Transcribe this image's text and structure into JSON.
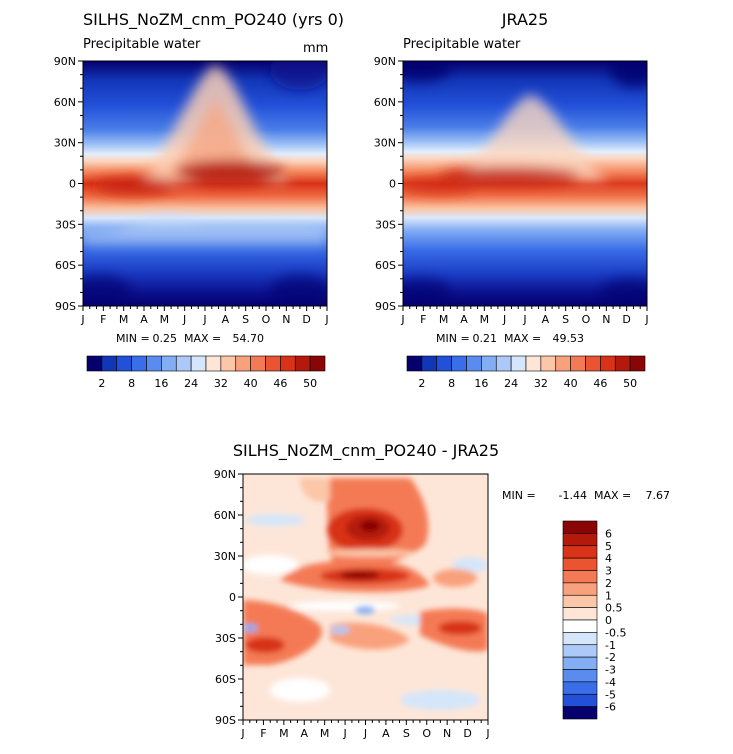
{
  "chart_data": [
    {
      "type": "heatmap",
      "title": "SILHS_NoZM_cnm_PO240 (yrs 0)",
      "subtitle": "Precipitable water",
      "units": "mm",
      "x": [
        "J",
        "F",
        "M",
        "A",
        "M",
        "J",
        "J",
        "A",
        "S",
        "O",
        "N",
        "D",
        "J"
      ],
      "y": [
        "90N",
        "60N",
        "30N",
        "0",
        "30S",
        "60S",
        "90S"
      ],
      "min_label": "MIN =",
      "min": "0.25",
      "max_label": "MAX =",
      "max": "54.70",
      "colorbar_labels": [
        "2",
        "8",
        "16",
        "24",
        "32",
        "40",
        "46",
        "50"
      ],
      "colorbar_colors": [
        "#05006e",
        "#1236b8",
        "#2250d8",
        "#3a6ee8",
        "#5a8cf0",
        "#84aef4",
        "#adc9f7",
        "#d6e6fa",
        "#fde6d8",
        "#fcc6a8",
        "#f9a07c",
        "#f47a55",
        "#ea5430",
        "#d83218",
        "#b41a0c",
        "#8a0606"
      ]
    },
    {
      "type": "heatmap",
      "title": "JRA25",
      "subtitle": "Precipitable water",
      "x": [
        "J",
        "F",
        "M",
        "A",
        "M",
        "J",
        "J",
        "A",
        "S",
        "O",
        "N",
        "D",
        "J"
      ],
      "y": [
        "90N",
        "60N",
        "30N",
        "0",
        "30S",
        "60S",
        "90S"
      ],
      "min_label": "MIN =",
      "min": "0.21",
      "max_label": "MAX =",
      "max": "49.53",
      "colorbar_labels": [
        "2",
        "8",
        "16",
        "24",
        "32",
        "40",
        "46",
        "50"
      ]
    },
    {
      "type": "heatmap",
      "title": "SILHS_NoZM_cnm_PO240 - JRA25",
      "x": [
        "J",
        "F",
        "M",
        "A",
        "M",
        "J",
        "J",
        "A",
        "S",
        "O",
        "N",
        "D",
        "J"
      ],
      "y": [
        "90N",
        "60N",
        "30N",
        "0",
        "30S",
        "60S",
        "90S"
      ],
      "min_label": "MIN =",
      "min": "-1.44",
      "max_label": "MAX =",
      "max": "7.67",
      "colorbar_labels": [
        "6",
        "5",
        "4",
        "3",
        "2",
        "1",
        "0.5",
        "0",
        "-0.5",
        "-1",
        "-2",
        "-3",
        "-4",
        "-5",
        "-6"
      ],
      "colorbar_colors": [
        "#8a0606",
        "#b41a0c",
        "#d83218",
        "#ea5430",
        "#f47a55",
        "#f9a07c",
        "#fcc6a8",
        "#fde6d8",
        "#ffffff",
        "#d6e6fa",
        "#adc9f7",
        "#84aef4",
        "#5a8cf0",
        "#3a6ee8",
        "#2250d8",
        "#05006e"
      ]
    }
  ]
}
